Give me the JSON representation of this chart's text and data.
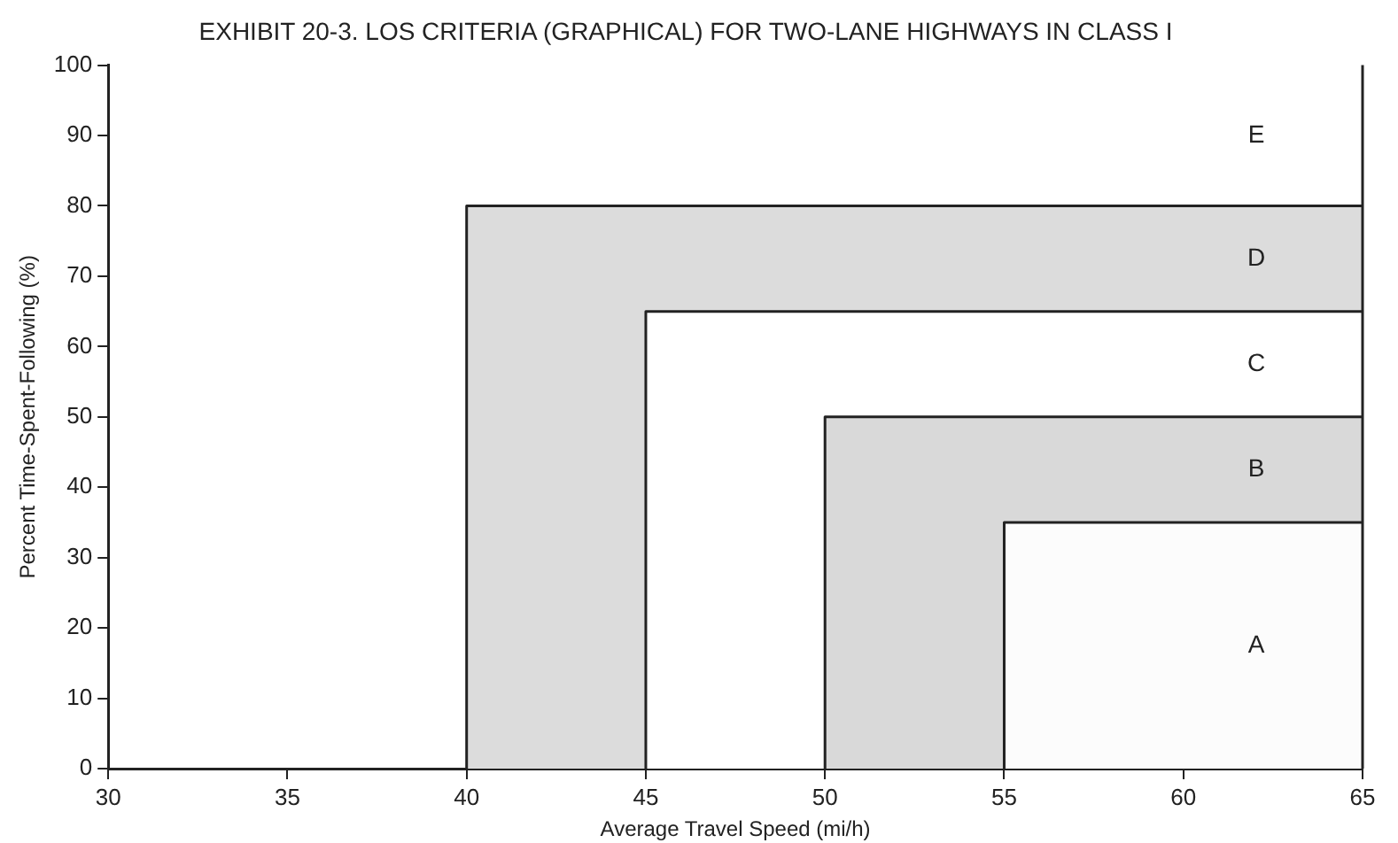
{
  "chart_data": {
    "type": "area",
    "title": "EXHIBIT 20-3. LOS CRITERIA (GRAPHICAL) FOR TWO-LANE HIGHWAYS IN CLASS I",
    "xlabel": "Average Travel Speed (mi/h)",
    "ylabel": "Percent Time-Spent-Following (%)",
    "xlim": [
      30,
      65
    ],
    "xticks": [
      30,
      35,
      40,
      45,
      50,
      55,
      60,
      65
    ],
    "ylim": [
      0,
      100
    ],
    "yticks": [
      0,
      10,
      20,
      30,
      40,
      50,
      60,
      70,
      80,
      90,
      100
    ],
    "grid": false,
    "legend": false,
    "series": [
      {
        "color": "#dcdcdc",
        "x": [
          40,
          40,
          65
        ],
        "values": [
          0,
          80,
          80
        ]
      },
      {
        "color": "#ffffff",
        "x": [
          45,
          45,
          65
        ],
        "values": [
          0,
          65,
          65
        ]
      },
      {
        "color": "#d9d9d9",
        "x": [
          50,
          50,
          65
        ],
        "values": [
          0,
          50,
          50
        ]
      },
      {
        "color": "#fcfcfc",
        "x": [
          55,
          55,
          65
        ],
        "values": [
          0,
          35,
          35
        ]
      }
    ],
    "annotations": [
      "E",
      "D",
      "C",
      "B",
      "A"
    ]
  }
}
